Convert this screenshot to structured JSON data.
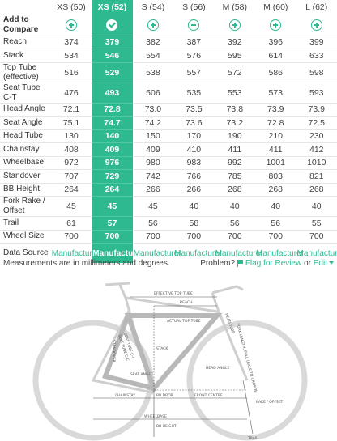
{
  "sizes": [
    "XS (50)",
    "XS (52)",
    "S (54)",
    "S (56)",
    "M (58)",
    "M (60)",
    "L (62)"
  ],
  "selected_index": 1,
  "add_label": "Add to Compare",
  "rows": [
    {
      "label": "Reach",
      "values": [
        "374",
        "379",
        "382",
        "387",
        "392",
        "396",
        "399"
      ]
    },
    {
      "label": "Stack",
      "values": [
        "534",
        "546",
        "554",
        "576",
        "595",
        "614",
        "633"
      ]
    },
    {
      "label": "Top Tube (effective)",
      "values": [
        "516",
        "529",
        "538",
        "557",
        "572",
        "586",
        "598"
      ]
    },
    {
      "label": "Seat Tube C-T",
      "values": [
        "476",
        "493",
        "506",
        "535",
        "553",
        "573",
        "593"
      ]
    },
    {
      "label": "Head Angle",
      "values": [
        "72.1",
        "72.8",
        "73.0",
        "73.5",
        "73.8",
        "73.9",
        "73.9"
      ]
    },
    {
      "label": "Seat Angle",
      "values": [
        "75.1",
        "74.7",
        "74.2",
        "73.6",
        "73.2",
        "72.8",
        "72.5"
      ]
    },
    {
      "label": "Head Tube",
      "values": [
        "130",
        "140",
        "150",
        "170",
        "190",
        "210",
        "230"
      ]
    },
    {
      "label": "Chainstay",
      "values": [
        "408",
        "409",
        "409",
        "410",
        "411",
        "411",
        "412"
      ]
    },
    {
      "label": "Wheelbase",
      "values": [
        "972",
        "976",
        "980",
        "983",
        "992",
        "1001",
        "1010"
      ]
    },
    {
      "label": "Standover",
      "values": [
        "707",
        "729",
        "742",
        "766",
        "785",
        "803",
        "821"
      ]
    },
    {
      "label": "BB Height",
      "values": [
        "264",
        "264",
        "266",
        "266",
        "268",
        "268",
        "268"
      ]
    },
    {
      "label": "Fork Rake / Offset",
      "values": [
        "45",
        "45",
        "45",
        "40",
        "40",
        "40",
        "40"
      ]
    },
    {
      "label": "Trail",
      "values": [
        "61",
        "57",
        "56",
        "58",
        "56",
        "56",
        "55"
      ]
    },
    {
      "label": "Wheel Size",
      "values": [
        "700",
        "700",
        "700",
        "700",
        "700",
        "700",
        "700"
      ]
    }
  ],
  "data_source": {
    "label": "Data Source",
    "value": "Manufacturer"
  },
  "footer": {
    "note": "Measurements are in millimeters and degrees.",
    "problem": "Problem?",
    "flag": "Flag for Review",
    "or": "or",
    "edit": "Edit"
  },
  "diagram_labels": {
    "effective_top_tube": "EFFECTIVE TOP TUBE",
    "reach": "REACH",
    "actual_top_tube": "ACTUAL TOP TUBE",
    "head_tube": "HEAD TUBE",
    "fork_length": "FORK LENGTH, FULL (AXLE TO CROWN)",
    "stack": "STACK",
    "seat_tube_ct": "SEAT TUBE C-T",
    "seat_tube_cc": "SEAT TUBE C-C",
    "standover": "STANDOVER",
    "seat_angle": "SEAT ANGLE",
    "head_angle": "HEAD ANGLE",
    "chainstay": "CHAINSTAY",
    "bb_drop": "BB DROP",
    "front_centre": "FRONT CENTRE",
    "rake_offset": "RAKE / OFFSET",
    "wheelbase": "WHEELBASE",
    "bb_height": "BB HEIGHT",
    "trail": "TRAIL"
  }
}
